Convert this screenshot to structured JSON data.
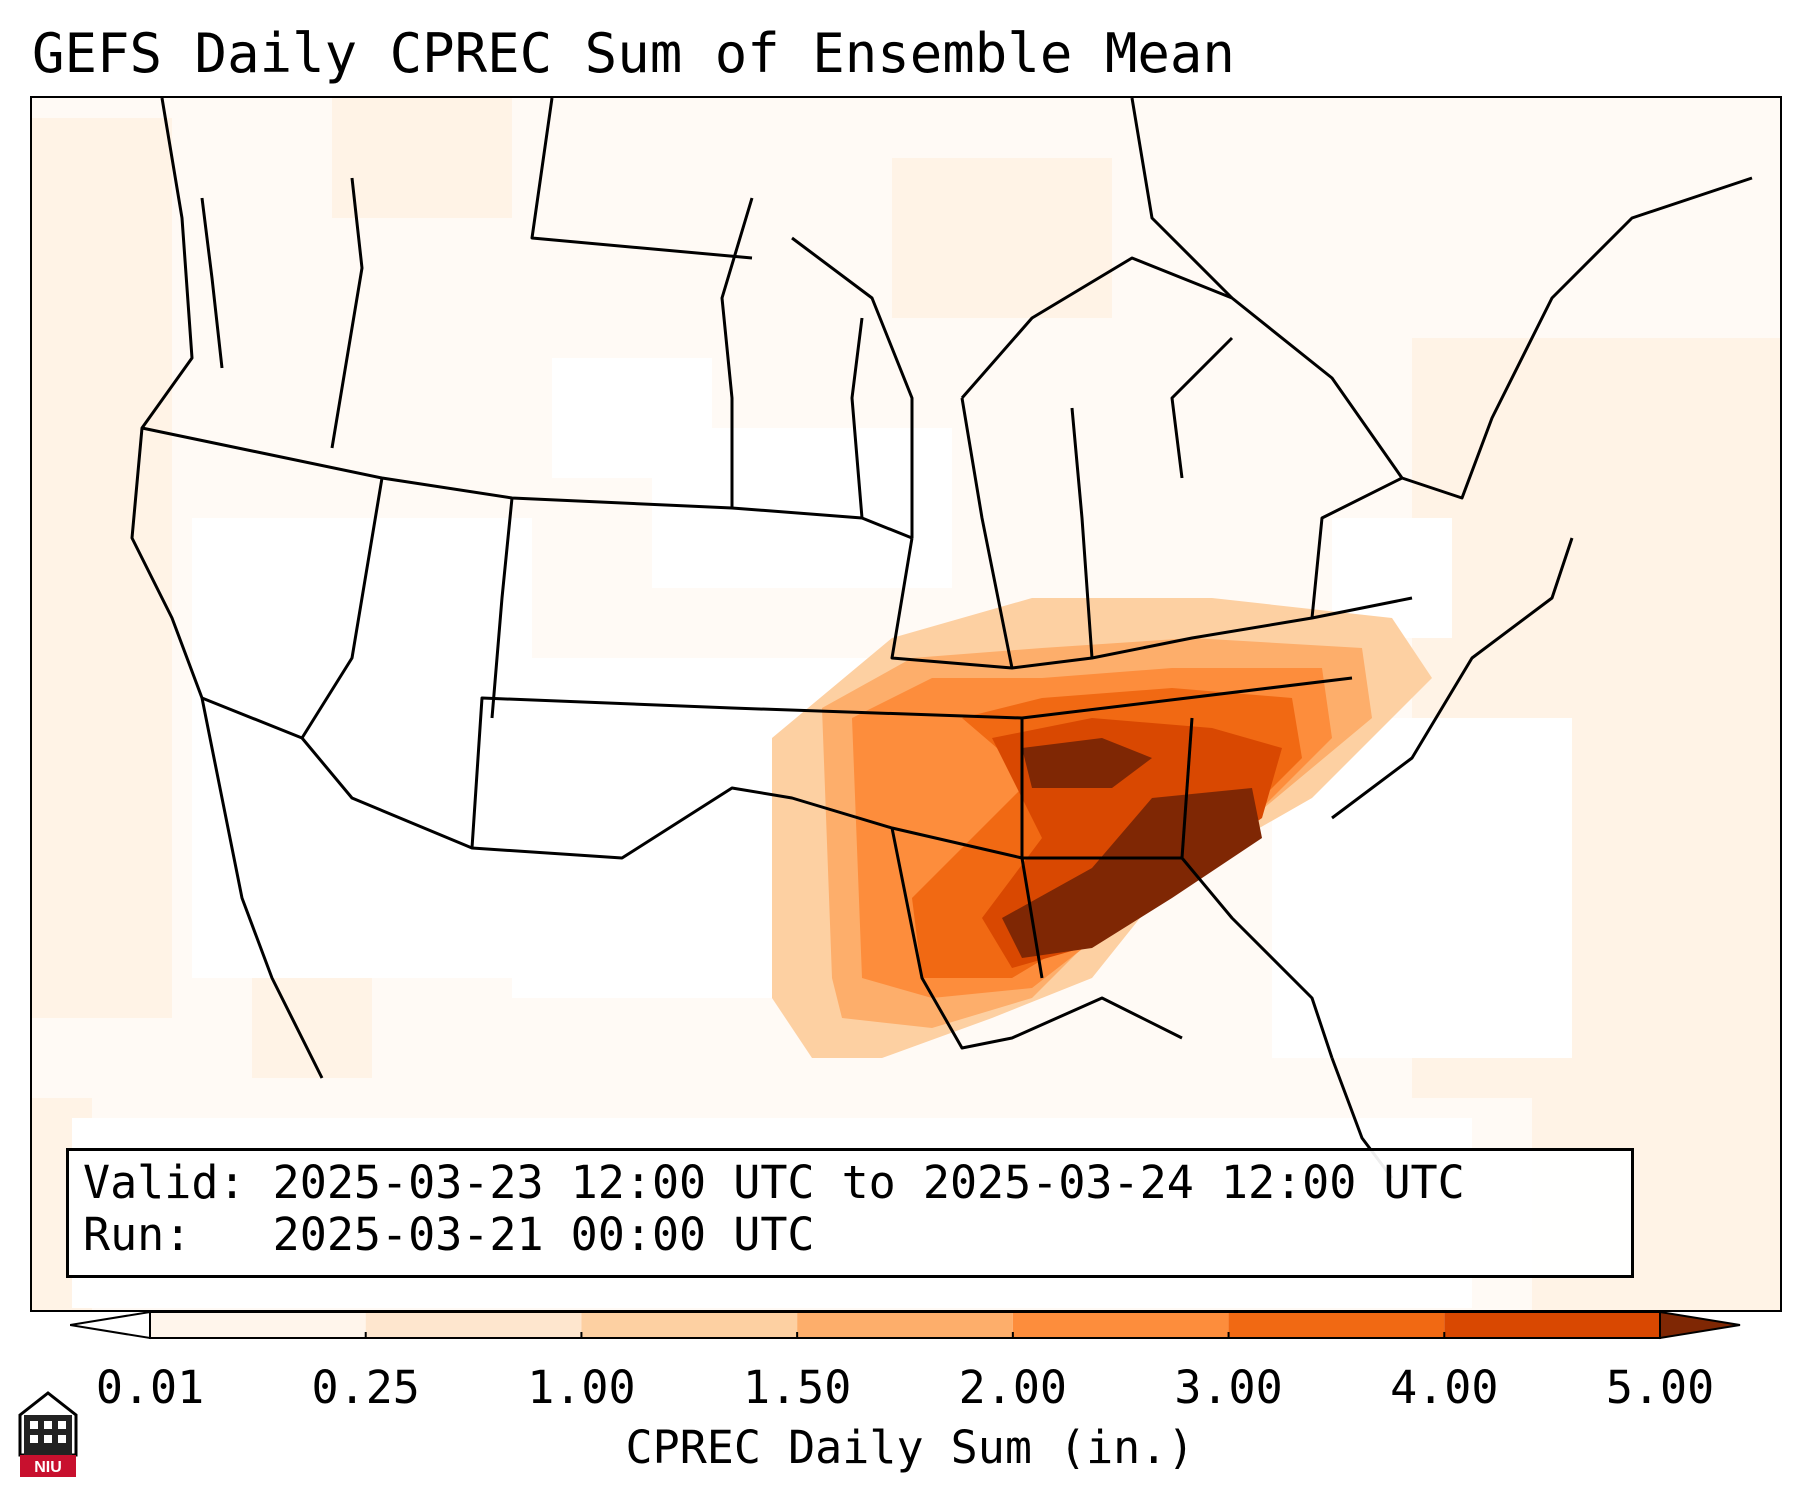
{
  "title": "GEFS Daily CPREC Sum of Ensemble Mean",
  "info": {
    "valid_label": "Valid:",
    "valid_value": "2025-03-23 12:00 UTC to 2025-03-24 12:00 UTC",
    "run_label": "Run:",
    "run_value": "2025-03-21 00:00 UTC"
  },
  "colorbar": {
    "label": "CPREC Daily Sum (in.)",
    "ticks": [
      "0.01",
      "0.25",
      "1.00",
      "1.50",
      "2.00",
      "3.00",
      "4.00",
      "5.00"
    ],
    "colors": [
      "#fff5eb",
      "#fee6ce",
      "#fdd0a2",
      "#fdae6b",
      "#fd8d3c",
      "#f16913",
      "#d94801",
      "#a63603"
    ],
    "under_color": "#ffffff",
    "over_color": "#7f2704"
  },
  "logo": {
    "text": "NIU"
  }
}
